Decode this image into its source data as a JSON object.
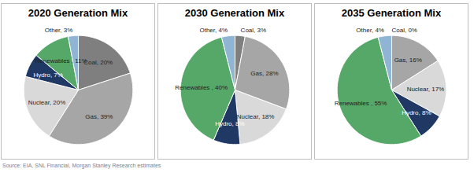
{
  "chart_data": [
    {
      "type": "pie",
      "title": "2020 Generation Mix",
      "categories": [
        "Coal",
        "Gas",
        "Nuclear",
        "Hydro",
        "Renewables",
        "Other"
      ],
      "values": [
        20,
        39,
        20,
        7,
        11,
        3
      ],
      "value_labels": [
        "Coal, 20%",
        "Gas, 39%",
        "Nuclear, 20%",
        "Hydro, 7%",
        "Renewables , 11%",
        "Other, 3%"
      ],
      "colors": [
        "#7f7f7f",
        "#a6a6a6",
        "#d9d9d9",
        "#1f3864",
        "#55a868",
        "#8fb4d4"
      ],
      "data_labels": true
    },
    {
      "type": "pie",
      "title": "2030 Generation Mix",
      "categories": [
        "Coal",
        "Gas",
        "Nuclear",
        "Hydro",
        "Renewables",
        "Other"
      ],
      "values": [
        3,
        28,
        18,
        8,
        40,
        4
      ],
      "value_labels": [
        "Coal, 3%",
        "Gas, 28%",
        "Nuclear, 18%",
        "Hydro, 8%",
        "Renewables , 40%",
        "Other, 4%"
      ],
      "colors": [
        "#7f7f7f",
        "#a6a6a6",
        "#d9d9d9",
        "#1f3864",
        "#55a868",
        "#8fb4d4"
      ],
      "data_labels": true
    },
    {
      "type": "pie",
      "title": "2035 Generation Mix",
      "categories": [
        "Coal",
        "Gas",
        "Nuclear",
        "Hydro",
        "Renewables",
        "Other"
      ],
      "values": [
        0,
        16,
        17,
        8,
        55,
        4
      ],
      "value_labels": [
        "Coal, 0%",
        "Gas, 16%",
        "Nuclear, 17%",
        "Hydro, 8%",
        "Renewables , 55%",
        "Other, 4%"
      ],
      "colors": [
        "#7f7f7f",
        "#a6a6a6",
        "#d9d9d9",
        "#1f3864",
        "#55a868",
        "#8fb4d4"
      ],
      "data_labels": true
    }
  ],
  "source": "Source: EIA, SNL Financial, Morgan Stanley Research estimates"
}
